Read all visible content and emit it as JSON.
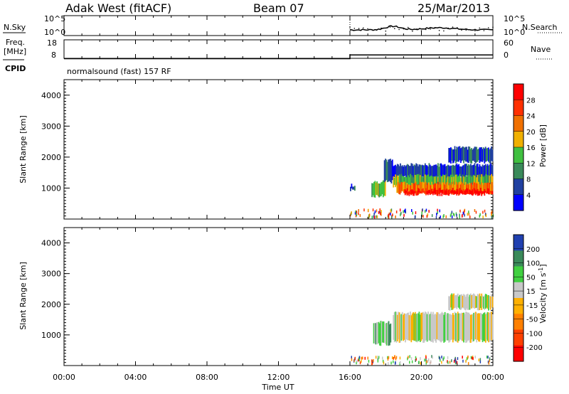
{
  "header": {
    "station": "Adak West (fitACF)",
    "beam": "Beam 07",
    "date": "25/Mar/2013"
  },
  "side_labels": {
    "nsky": "N.Sky",
    "freq_line1": "Freq.",
    "freq_line2": "[MHz]",
    "cpid": "CPID",
    "nsearch": "N.Search",
    "nave": "Nave"
  },
  "cpid_text": "normalsound (fast) 157 RF",
  "colors": {
    "power": [
      "#0000ff",
      "#2040a0",
      "#3a8a5a",
      "#40c040",
      "#f0b000",
      "#f07000",
      "#ff3000",
      "#ff0000"
    ],
    "velocity": [
      "#ff0000",
      "#ff4000",
      "#ff8000",
      "#ffb000",
      "#c8c8c8",
      "#40d040",
      "#3a8a5a",
      "#2040b0"
    ]
  },
  "chart_data": [
    {
      "type": "line",
      "name": "noise-panel",
      "ylabels": [
        "10^5",
        "10^0"
      ],
      "ylabels_right": [
        "10^5",
        "10^0"
      ],
      "note": "data present only 16:00-24:00 UT"
    },
    {
      "type": "line",
      "name": "freq-nave-panel",
      "y_ticks_left": [
        "18",
        "8"
      ],
      "y_ticks_right": [
        "60",
        "0"
      ],
      "freq_mhz": [
        {
          "t": 0,
          "v": 8
        },
        {
          "t": 16,
          "v": 8
        },
        {
          "t": 16,
          "v": 10
        },
        {
          "t": 24,
          "v": 10
        }
      ]
    },
    {
      "type": "heatmap",
      "name": "power-panel",
      "ylabel": "Slant Range [km]",
      "y_ticks": [
        "1000",
        "2000",
        "3000",
        "4000"
      ],
      "ylim": [
        0,
        4500
      ],
      "xlim": [
        0,
        24
      ],
      "colorbar_label": "Power [dB]",
      "colorbar_ticks": [
        "4",
        "8",
        "12",
        "16",
        "20",
        "24",
        "28"
      ],
      "features": [
        {
          "t0": 16.0,
          "t1": 16.3,
          "r0": 950,
          "r1": 1100,
          "level": 1
        },
        {
          "t0": 17.2,
          "t1": 18.0,
          "r0": 750,
          "r1": 1200,
          "level": 3
        },
        {
          "t0": 17.9,
          "t1": 18.4,
          "r0": 1200,
          "r1": 1900,
          "level": 1
        },
        {
          "t0": 18.4,
          "t1": 24.0,
          "r0": 1350,
          "r1": 1750,
          "level": 1
        },
        {
          "t0": 18.4,
          "t1": 24.0,
          "r0": 1050,
          "r1": 1400,
          "level": 3
        },
        {
          "t0": 18.6,
          "t1": 24.0,
          "r0": 850,
          "r1": 1150,
          "level": 5
        },
        {
          "t0": 19.0,
          "t1": 24.0,
          "r0": 800,
          "r1": 950,
          "level": 7
        },
        {
          "t0": 21.5,
          "t1": 24.0,
          "r0": 1850,
          "r1": 2300,
          "level": 1
        }
      ]
    },
    {
      "type": "heatmap",
      "name": "velocity-panel",
      "ylabel": "Slant Range [km]",
      "xlabel": "Time UT",
      "x_ticks": [
        "00:00",
        "04:00",
        "08:00",
        "12:00",
        "16:00",
        "20:00",
        "00:00"
      ],
      "y_ticks": [
        "1000",
        "2000",
        "3000",
        "4000"
      ],
      "ylim": [
        0,
        4500
      ],
      "xlim": [
        0,
        24
      ],
      "colorbar_label": "Velocity [m s^-1]",
      "colorbar_ticks": [
        "-200",
        "-100",
        "-50",
        "-15",
        "15",
        "50",
        "100",
        "200"
      ],
      "features": [
        {
          "t0": 17.3,
          "t1": 18.3,
          "r0": 700,
          "r1": 1400,
          "level": 5
        },
        {
          "t0": 18.4,
          "t1": 24.0,
          "r0": 800,
          "r1": 1700,
          "level": 4
        },
        {
          "t0": 21.5,
          "t1": 24.0,
          "r0": 1850,
          "r1": 2300,
          "level": 4
        }
      ]
    }
  ]
}
